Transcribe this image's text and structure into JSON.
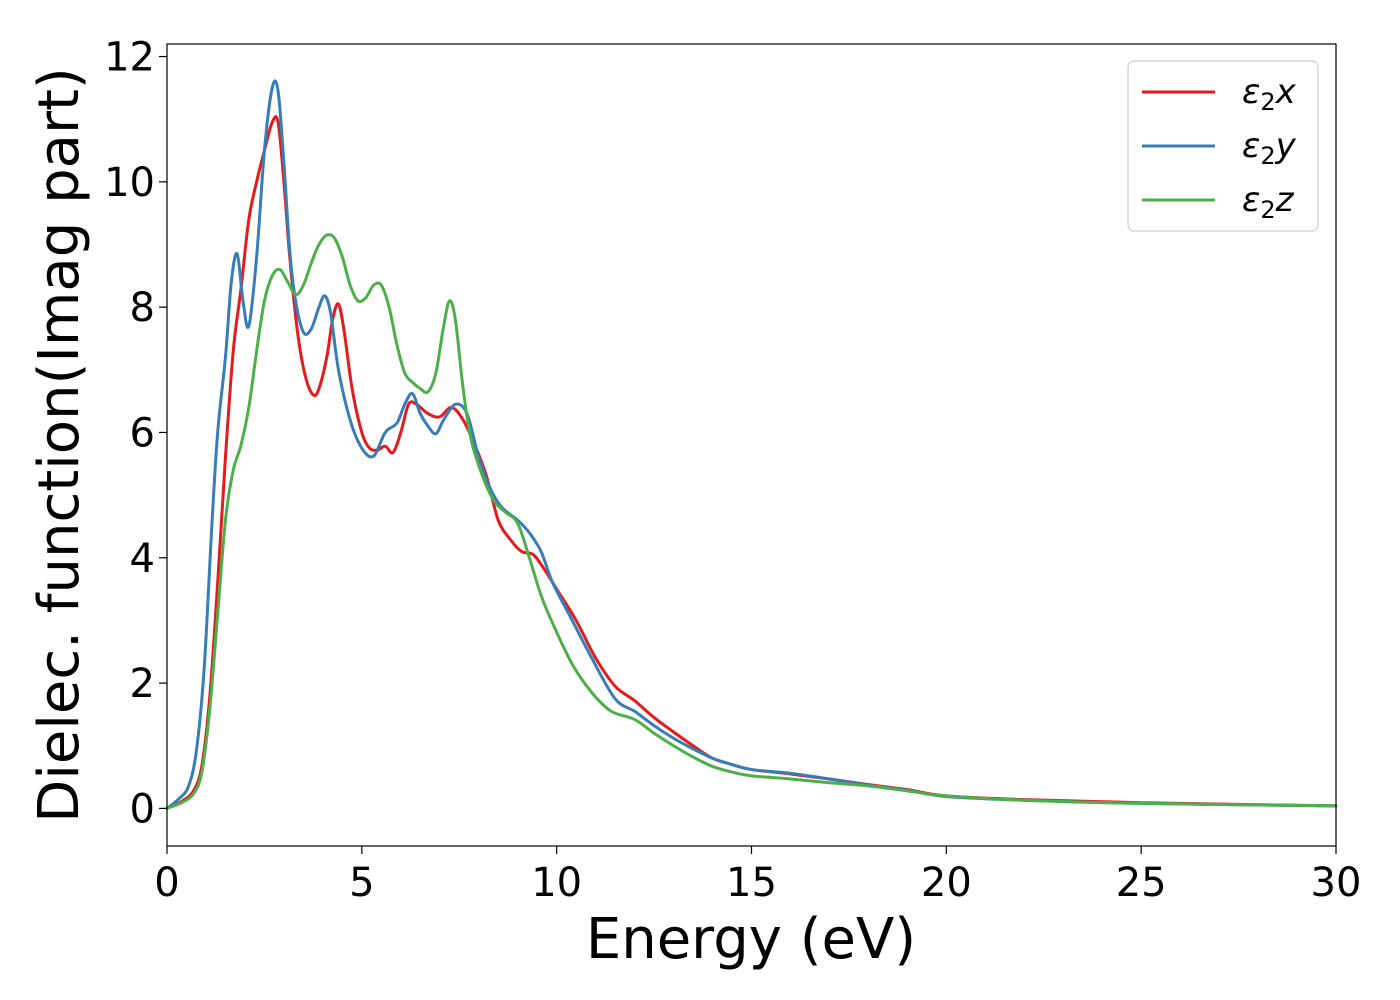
{
  "chart_data": {
    "type": "line",
    "title": "",
    "xlabel": "Energy (eV)",
    "ylabel": "Dielec. function(Imag part)",
    "xlim": [
      0,
      30
    ],
    "ylim": [
      -0.6,
      12.2
    ],
    "xticks": [
      0,
      5,
      10,
      15,
      20,
      25,
      30
    ],
    "yticks": [
      0,
      2,
      4,
      6,
      8,
      10,
      12
    ],
    "grid": false,
    "legend_position": "top-right",
    "series": [
      {
        "name": "ε₂x",
        "legend_base": "ε",
        "legend_sub": "2",
        "legend_suffix": "x",
        "color": "#e41a1c",
        "points": [
          [
            0,
            0
          ],
          [
            0.4,
            0.12
          ],
          [
            0.7,
            0.3
          ],
          [
            0.9,
            0.7
          ],
          [
            1.1,
            1.8
          ],
          [
            1.3,
            3.6
          ],
          [
            1.5,
            5.6
          ],
          [
            1.7,
            7.3
          ],
          [
            1.9,
            8.3
          ],
          [
            2.1,
            9.4
          ],
          [
            2.3,
            10.0
          ],
          [
            2.5,
            10.5
          ],
          [
            2.7,
            10.95
          ],
          [
            2.85,
            10.95
          ],
          [
            3.0,
            10.0
          ],
          [
            3.15,
            8.8
          ],
          [
            3.35,
            7.6
          ],
          [
            3.55,
            6.9
          ],
          [
            3.75,
            6.6
          ],
          [
            3.9,
            6.7
          ],
          [
            4.1,
            7.2
          ],
          [
            4.25,
            7.8
          ],
          [
            4.4,
            8.05
          ],
          [
            4.55,
            7.6
          ],
          [
            4.75,
            6.7
          ],
          [
            5.0,
            6.0
          ],
          [
            5.2,
            5.75
          ],
          [
            5.4,
            5.72
          ],
          [
            5.6,
            5.78
          ],
          [
            5.8,
            5.68
          ],
          [
            6.0,
            6.0
          ],
          [
            6.2,
            6.45
          ],
          [
            6.4,
            6.45
          ],
          [
            6.7,
            6.3
          ],
          [
            7.0,
            6.25
          ],
          [
            7.3,
            6.4
          ],
          [
            7.6,
            6.2
          ],
          [
            7.9,
            5.8
          ],
          [
            8.2,
            5.3
          ],
          [
            8.5,
            4.6
          ],
          [
            8.8,
            4.3
          ],
          [
            9.1,
            4.1
          ],
          [
            9.4,
            4.05
          ],
          [
            9.7,
            3.8
          ],
          [
            10.0,
            3.5
          ],
          [
            10.5,
            3.0
          ],
          [
            11.0,
            2.4
          ],
          [
            11.5,
            1.95
          ],
          [
            12.0,
            1.72
          ],
          [
            12.5,
            1.45
          ],
          [
            13.0,
            1.22
          ],
          [
            13.5,
            1.0
          ],
          [
            14.0,
            0.8
          ],
          [
            14.5,
            0.7
          ],
          [
            15.0,
            0.62
          ],
          [
            16.0,
            0.55
          ],
          [
            17.0,
            0.47
          ],
          [
            18.0,
            0.38
          ],
          [
            19.0,
            0.3
          ],
          [
            20.0,
            0.2
          ],
          [
            22.0,
            0.14
          ],
          [
            25.0,
            0.09
          ],
          [
            30.0,
            0.04
          ]
        ]
      },
      {
        "name": "ε₂y",
        "legend_base": "ε",
        "legend_sub": "2",
        "legend_suffix": "y",
        "color": "#377eb8",
        "points": [
          [
            0,
            0
          ],
          [
            0.3,
            0.15
          ],
          [
            0.55,
            0.35
          ],
          [
            0.75,
            0.9
          ],
          [
            0.95,
            2.2
          ],
          [
            1.15,
            4.5
          ],
          [
            1.3,
            6.0
          ],
          [
            1.5,
            7.2
          ],
          [
            1.65,
            8.4
          ],
          [
            1.8,
            8.85
          ],
          [
            1.95,
            8.1
          ],
          [
            2.1,
            7.7
          ],
          [
            2.3,
            8.8
          ],
          [
            2.5,
            10.5
          ],
          [
            2.7,
            11.5
          ],
          [
            2.85,
            11.45
          ],
          [
            3.0,
            10.3
          ],
          [
            3.15,
            8.9
          ],
          [
            3.3,
            8.1
          ],
          [
            3.5,
            7.6
          ],
          [
            3.7,
            7.65
          ],
          [
            3.9,
            8.0
          ],
          [
            4.05,
            8.18
          ],
          [
            4.2,
            7.9
          ],
          [
            4.4,
            7.0
          ],
          [
            4.7,
            6.2
          ],
          [
            5.0,
            5.75
          ],
          [
            5.3,
            5.62
          ],
          [
            5.6,
            6.0
          ],
          [
            5.9,
            6.15
          ],
          [
            6.1,
            6.45
          ],
          [
            6.3,
            6.62
          ],
          [
            6.5,
            6.3
          ],
          [
            6.7,
            6.1
          ],
          [
            6.9,
            5.98
          ],
          [
            7.1,
            6.2
          ],
          [
            7.4,
            6.45
          ],
          [
            7.7,
            6.3
          ],
          [
            8.0,
            5.6
          ],
          [
            8.3,
            5.1
          ],
          [
            8.6,
            4.8
          ],
          [
            9.0,
            4.6
          ],
          [
            9.3,
            4.4
          ],
          [
            9.6,
            4.1
          ],
          [
            9.9,
            3.6
          ],
          [
            10.4,
            3.0
          ],
          [
            10.9,
            2.4
          ],
          [
            11.5,
            1.75
          ],
          [
            12.0,
            1.55
          ],
          [
            12.5,
            1.32
          ],
          [
            13.0,
            1.12
          ],
          [
            13.5,
            0.95
          ],
          [
            14.0,
            0.8
          ],
          [
            14.5,
            0.7
          ],
          [
            15.0,
            0.62
          ],
          [
            16.0,
            0.56
          ],
          [
            17.0,
            0.47
          ],
          [
            18.0,
            0.37
          ],
          [
            19.0,
            0.29
          ],
          [
            20.0,
            0.19
          ],
          [
            22.0,
            0.13
          ],
          [
            25.0,
            0.08
          ],
          [
            30.0,
            0.04
          ]
        ]
      },
      {
        "name": "ε₂z",
        "legend_base": "ε",
        "legend_sub": "2",
        "legend_suffix": "z",
        "color": "#4daf4a",
        "points": [
          [
            0,
            0
          ],
          [
            0.4,
            0.1
          ],
          [
            0.7,
            0.25
          ],
          [
            0.9,
            0.6
          ],
          [
            1.1,
            1.6
          ],
          [
            1.3,
            3.1
          ],
          [
            1.5,
            4.6
          ],
          [
            1.7,
            5.4
          ],
          [
            1.9,
            5.8
          ],
          [
            2.1,
            6.4
          ],
          [
            2.3,
            7.3
          ],
          [
            2.5,
            8.1
          ],
          [
            2.7,
            8.5
          ],
          [
            2.9,
            8.6
          ],
          [
            3.1,
            8.4
          ],
          [
            3.3,
            8.2
          ],
          [
            3.5,
            8.35
          ],
          [
            3.7,
            8.7
          ],
          [
            3.9,
            9.0
          ],
          [
            4.1,
            9.15
          ],
          [
            4.3,
            9.1
          ],
          [
            4.5,
            8.8
          ],
          [
            4.7,
            8.35
          ],
          [
            4.9,
            8.1
          ],
          [
            5.1,
            8.15
          ],
          [
            5.3,
            8.35
          ],
          [
            5.5,
            8.35
          ],
          [
            5.7,
            8.0
          ],
          [
            5.9,
            7.4
          ],
          [
            6.1,
            6.95
          ],
          [
            6.3,
            6.8
          ],
          [
            6.5,
            6.7
          ],
          [
            6.7,
            6.65
          ],
          [
            6.9,
            6.95
          ],
          [
            7.1,
            7.7
          ],
          [
            7.25,
            8.1
          ],
          [
            7.4,
            7.8
          ],
          [
            7.6,
            6.7
          ],
          [
            7.8,
            5.9
          ],
          [
            8.1,
            5.3
          ],
          [
            8.4,
            4.9
          ],
          [
            8.7,
            4.72
          ],
          [
            9.0,
            4.55
          ],
          [
            9.3,
            4.0
          ],
          [
            9.6,
            3.4
          ],
          [
            9.9,
            2.95
          ],
          [
            10.4,
            2.3
          ],
          [
            10.9,
            1.85
          ],
          [
            11.4,
            1.55
          ],
          [
            12.0,
            1.42
          ],
          [
            12.5,
            1.2
          ],
          [
            13.0,
            1.0
          ],
          [
            13.5,
            0.82
          ],
          [
            14.0,
            0.67
          ],
          [
            14.5,
            0.58
          ],
          [
            15.0,
            0.52
          ],
          [
            16.0,
            0.47
          ],
          [
            17.0,
            0.41
          ],
          [
            18.0,
            0.36
          ],
          [
            19.0,
            0.28
          ],
          [
            20.0,
            0.2
          ],
          [
            22.0,
            0.13
          ],
          [
            25.0,
            0.08
          ],
          [
            30.0,
            0.04
          ]
        ]
      }
    ]
  }
}
